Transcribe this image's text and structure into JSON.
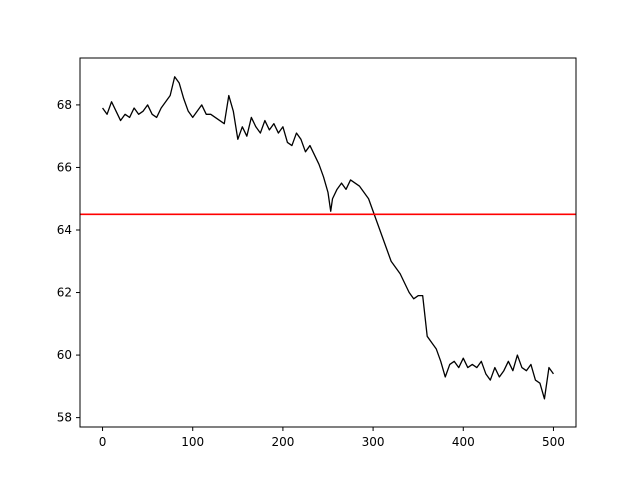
{
  "chart_data": {
    "type": "line",
    "title": "",
    "xlabel": "",
    "ylabel": "",
    "xlim": [
      -25,
      525
    ],
    "ylim": [
      57.7,
      69.5
    ],
    "x_ticks": [
      0,
      100,
      200,
      300,
      400,
      500
    ],
    "x_tick_labels": [
      "0",
      "100",
      "200",
      "300",
      "400",
      "500"
    ],
    "y_ticks": [
      58,
      60,
      62,
      64,
      66,
      68
    ],
    "y_tick_labels": [
      "58",
      "60",
      "62",
      "64",
      "66",
      "68"
    ],
    "grid": false,
    "series": [
      {
        "color": "#000000",
        "x": [
          0,
          5,
          10,
          15,
          20,
          25,
          30,
          35,
          40,
          45,
          50,
          55,
          60,
          65,
          70,
          75,
          80,
          85,
          90,
          95,
          100,
          105,
          110,
          115,
          120,
          125,
          130,
          135,
          140,
          145,
          150,
          155,
          160,
          165,
          170,
          175,
          180,
          185,
          190,
          195,
          200,
          205,
          210,
          215,
          220,
          225,
          230,
          235,
          240,
          245,
          250,
          253,
          255,
          260,
          265,
          270,
          275,
          280,
          285,
          290,
          295,
          300,
          305,
          310,
          315,
          320,
          325,
          330,
          335,
          340,
          345,
          350,
          355,
          360,
          365,
          370,
          375,
          380,
          385,
          390,
          395,
          400,
          405,
          410,
          415,
          420,
          425,
          430,
          435,
          440,
          445,
          450,
          455,
          460,
          465,
          470,
          475,
          480,
          485,
          490,
          495,
          500
        ],
        "y": [
          67.9,
          67.7,
          68.1,
          67.8,
          67.5,
          67.7,
          67.6,
          67.9,
          67.7,
          67.8,
          68.0,
          67.7,
          67.6,
          67.9,
          68.1,
          68.3,
          68.9,
          68.7,
          68.2,
          67.8,
          67.6,
          67.8,
          68.0,
          67.7,
          67.7,
          67.6,
          67.5,
          67.4,
          68.3,
          67.8,
          66.9,
          67.3,
          67.0,
          67.6,
          67.3,
          67.1,
          67.5,
          67.2,
          67.4,
          67.1,
          67.3,
          66.8,
          66.7,
          67.1,
          66.9,
          66.5,
          66.7,
          66.4,
          66.1,
          65.7,
          65.2,
          64.6,
          65.0,
          65.3,
          65.5,
          65.3,
          65.6,
          65.5,
          65.4,
          65.2,
          65.0,
          64.6,
          64.2,
          63.8,
          63.4,
          63.0,
          62.8,
          62.6,
          62.3,
          62.0,
          61.8,
          61.9,
          61.9,
          60.6,
          60.4,
          60.2,
          59.8,
          59.3,
          59.7,
          59.8,
          59.6,
          59.9,
          59.6,
          59.7,
          59.6,
          59.8,
          59.4,
          59.2,
          59.6,
          59.3,
          59.5,
          59.8,
          59.5,
          60.0,
          59.6,
          59.5,
          59.7,
          59.2,
          59.1,
          58.6,
          59.6,
          59.4
        ]
      }
    ],
    "hline": {
      "y": 64.5,
      "color": "#ff0000"
    }
  }
}
